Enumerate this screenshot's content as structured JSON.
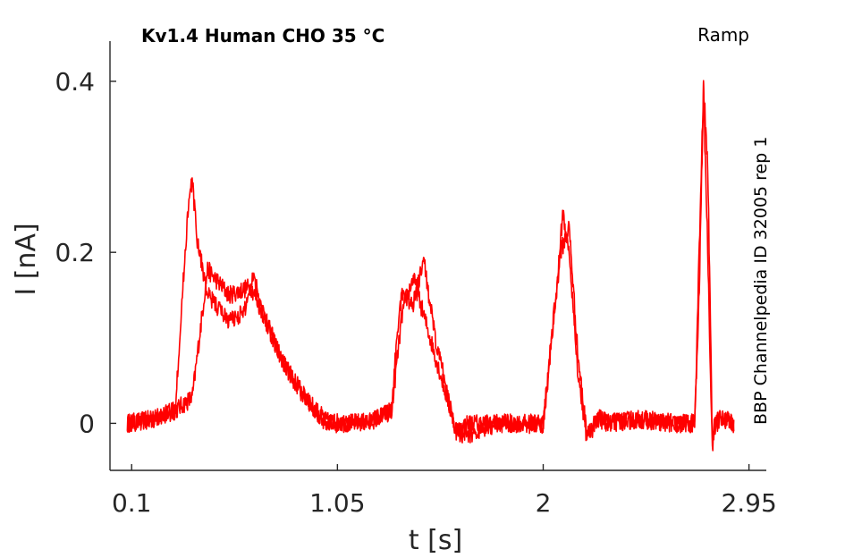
{
  "chart_data": {
    "type": "line",
    "title": "Kv1.4  Human  CHO  35 °C",
    "protocol": "Ramp",
    "side_label": "BBP Channelpedia ID 32005 rep 1",
    "xlabel": "t [s]",
    "ylabel": "I [nA]",
    "xlim": [
      -0.0,
      3.03
    ],
    "ylim": [
      -0.055,
      0.447
    ],
    "xticks": [
      0.1,
      1.05,
      2,
      2.95
    ],
    "xtick_labels": [
      "0.1",
      "1.05",
      "2",
      "2.95"
    ],
    "yticks": [
      0,
      0.2,
      0.4
    ],
    "ytick_labels": [
      "0",
      "0.2",
      "0.4"
    ],
    "grid": false,
    "colors": {
      "trace": "#ff0000",
      "axis": "#262626"
    },
    "series": [
      {
        "x": [
          0.08,
          0.2,
          0.3,
          0.38,
          0.45,
          0.55,
          0.65,
          0.72,
          0.8,
          0.9,
          1.0,
          1.1,
          1.2,
          1.3,
          1.35,
          1.4,
          1.5,
          1.6,
          1.65,
          1.78,
          1.9,
          2.0,
          2.08,
          2.12,
          2.16,
          2.2,
          2.26,
          2.3,
          2.45,
          2.6,
          2.7,
          2.72,
          2.74,
          2.76,
          2.78,
          2.8,
          2.83,
          2.88
        ],
        "y": [
          0.0,
          0.005,
          0.015,
          0.03,
          0.18,
          0.15,
          0.16,
          0.12,
          0.07,
          0.03,
          0.002,
          0.0,
          0.002,
          0.015,
          0.13,
          0.17,
          0.08,
          -0.01,
          0.0,
          0.0,
          0.0,
          -0.002,
          0.2,
          0.23,
          0.08,
          -0.01,
          0.005,
          0.0,
          0.005,
          0.0,
          0.0,
          0.15,
          0.39,
          0.2,
          -0.025,
          0.0,
          0.005,
          0.0
        ]
      },
      {
        "x": [
          0.08,
          0.2,
          0.3,
          0.36,
          0.38,
          0.4,
          0.45,
          0.55,
          0.62,
          0.66,
          0.72,
          0.8,
          0.9,
          1.0,
          1.1,
          1.2,
          1.3,
          1.33,
          1.35,
          1.4,
          1.45,
          1.5,
          1.6,
          1.65,
          1.78,
          1.9,
          2.0,
          2.07,
          2.09,
          2.12,
          2.16,
          2.2,
          2.26,
          2.3,
          2.45,
          2.6,
          2.7,
          2.72,
          2.74,
          2.76,
          2.78,
          2.8,
          2.83,
          2.88
        ],
        "y": [
          0.0,
          0.005,
          0.015,
          0.25,
          0.285,
          0.22,
          0.15,
          0.12,
          0.13,
          0.175,
          0.12,
          0.07,
          0.03,
          0.0,
          0.0,
          0.002,
          0.015,
          0.12,
          0.15,
          0.14,
          0.19,
          0.1,
          -0.01,
          -0.015,
          0.0,
          0.0,
          0.0,
          0.18,
          0.245,
          0.2,
          0.06,
          -0.015,
          0.005,
          0.0,
          0.005,
          0.0,
          0.0,
          0.2,
          0.395,
          0.3,
          -0.01,
          0.005,
          0.005,
          0.0
        ]
      }
    ]
  }
}
